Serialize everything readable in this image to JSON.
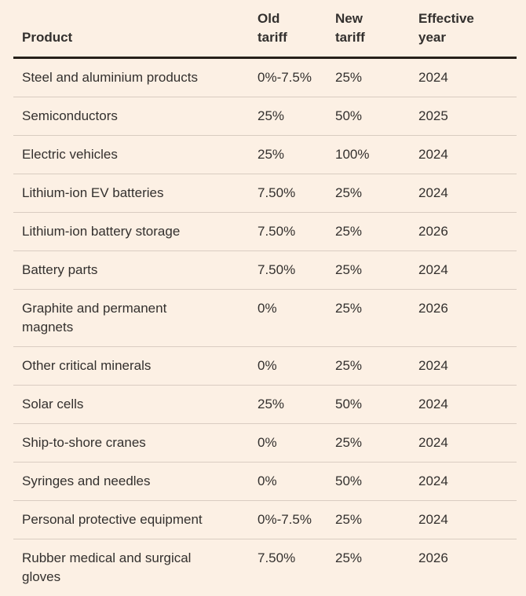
{
  "chart_data": {
    "type": "table",
    "title": "",
    "columns": [
      "Product",
      "Old\ntariff",
      "New\ntariff",
      "Effective\nyear"
    ],
    "rows": [
      {
        "product": "Steel and aluminium products",
        "old_tariff": "0%-7.5%",
        "new_tariff": "25%",
        "effective_year": "2024"
      },
      {
        "product": "Semiconductors",
        "old_tariff": "25%",
        "new_tariff": "50%",
        "effective_year": "2025"
      },
      {
        "product": "Electric vehicles",
        "old_tariff": "25%",
        "new_tariff": "100%",
        "effective_year": "2024"
      },
      {
        "product": "Lithium-ion EV batteries",
        "old_tariff": "7.50%",
        "new_tariff": "25%",
        "effective_year": "2024"
      },
      {
        "product": "Lithium-ion battery storage",
        "old_tariff": "7.50%",
        "new_tariff": "25%",
        "effective_year": "2026"
      },
      {
        "product": "Battery parts",
        "old_tariff": "7.50%",
        "new_tariff": "25%",
        "effective_year": "2024"
      },
      {
        "product": "Graphite and permanent\nmagnets",
        "old_tariff": "0%",
        "new_tariff": "25%",
        "effective_year": "2026"
      },
      {
        "product": "Other critical minerals",
        "old_tariff": "0%",
        "new_tariff": "25%",
        "effective_year": "2024"
      },
      {
        "product": "Solar cells",
        "old_tariff": "25%",
        "new_tariff": "50%",
        "effective_year": "2024"
      },
      {
        "product": "Ship-to-shore cranes",
        "old_tariff": "0%",
        "new_tariff": "25%",
        "effective_year": "2024"
      },
      {
        "product": "Syringes and needles",
        "old_tariff": "0%",
        "new_tariff": "50%",
        "effective_year": "2024"
      },
      {
        "product": "Personal protective equipment",
        "old_tariff": "0%-7.5%",
        "new_tariff": "25%",
        "effective_year": "2024"
      },
      {
        "product": "Rubber medical and surgical\ngloves",
        "old_tariff": "7.50%",
        "new_tariff": "25%",
        "effective_year": "2026"
      }
    ]
  },
  "colors": {
    "background": "#FCF0E4",
    "text": "#33302E",
    "header_rule": "#26201A",
    "row_divider": "#D9CCC1"
  }
}
